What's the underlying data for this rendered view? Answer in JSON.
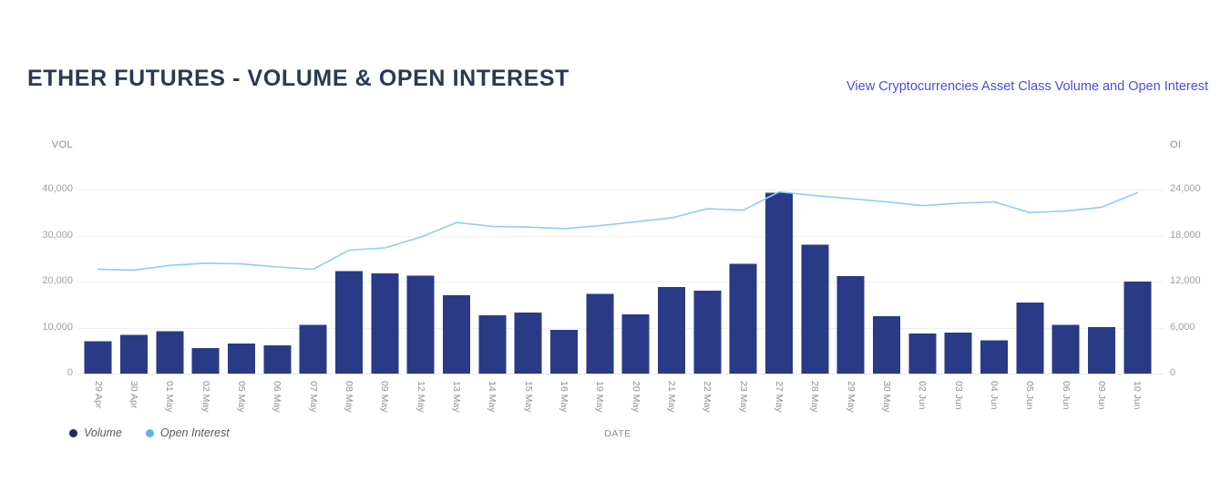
{
  "header": {
    "title": "ETHER FUTURES - VOLUME & OPEN INTEREST",
    "link_text": "View Cryptocurrencies Asset Class Volume and Open Interest"
  },
  "colors": {
    "title": "#2a3a50",
    "link": "#4a4de0",
    "bar": "#293a86",
    "line": "#8fcef2",
    "legend_volume_dot": "#1d2b5e",
    "legend_open_interest_dot": "#5cb8ee",
    "grid": "#eef0f3",
    "axis_text": "#9aa0a8"
  },
  "legend": {
    "items": [
      {
        "label": "Volume",
        "color_key": "legend_volume_dot"
      },
      {
        "label": "Open Interest",
        "color_key": "legend_open_interest_dot"
      }
    ]
  },
  "chart_data": {
    "type": "bar",
    "title": "ETHER FUTURES - VOLUME & OPEN INTEREST",
    "xlabel": "DATE",
    "categories": [
      "29 Apr",
      "30 Apr",
      "01 May",
      "02 May",
      "05 May",
      "06 May",
      "07 May",
      "08 May",
      "09 May",
      "12 May",
      "13 May",
      "14 May",
      "15 May",
      "16 May",
      "19 May",
      "20 May",
      "21 May",
      "22 May",
      "23 May",
      "27 May",
      "28 May",
      "29 May",
      "30 May",
      "02 Jun",
      "03 Jun",
      "04 Jun",
      "05 Jun",
      "06 Jun",
      "09 Jun",
      "10 Jun"
    ],
    "series": [
      {
        "name": "Volume",
        "type": "bar",
        "axis": "left",
        "values": [
          7000,
          8400,
          9200,
          5500,
          6500,
          6100,
          10600,
          22300,
          21800,
          21300,
          17000,
          12700,
          13300,
          9500,
          17300,
          12900,
          18800,
          18000,
          23900,
          39300,
          28000,
          21200,
          12500,
          8700,
          8900,
          7200,
          15400,
          10600,
          10100,
          20000
        ]
      },
      {
        "name": "Open Interest",
        "type": "line",
        "axis": "right",
        "values": [
          13600,
          13500,
          14100,
          14400,
          14300,
          13900,
          13600,
          16100,
          16400,
          17800,
          19700,
          19200,
          19100,
          18900,
          19300,
          19800,
          20300,
          21500,
          21300,
          23700,
          23200,
          22800,
          22400,
          21900,
          22200,
          22400,
          21000,
          21200,
          21700,
          23600
        ]
      }
    ],
    "left_axis": {
      "label": "VOL",
      "min": 0,
      "max": 40000,
      "ticks": [
        "40,000",
        "30,000",
        "20,000",
        "10,000",
        "0"
      ]
    },
    "right_axis": {
      "label": "OI",
      "min": 0,
      "max": 24000,
      "ticks": [
        "24,000",
        "18,000",
        "12,000",
        "6,000",
        "0"
      ]
    },
    "grid": true,
    "legend_position": "bottom-left"
  }
}
